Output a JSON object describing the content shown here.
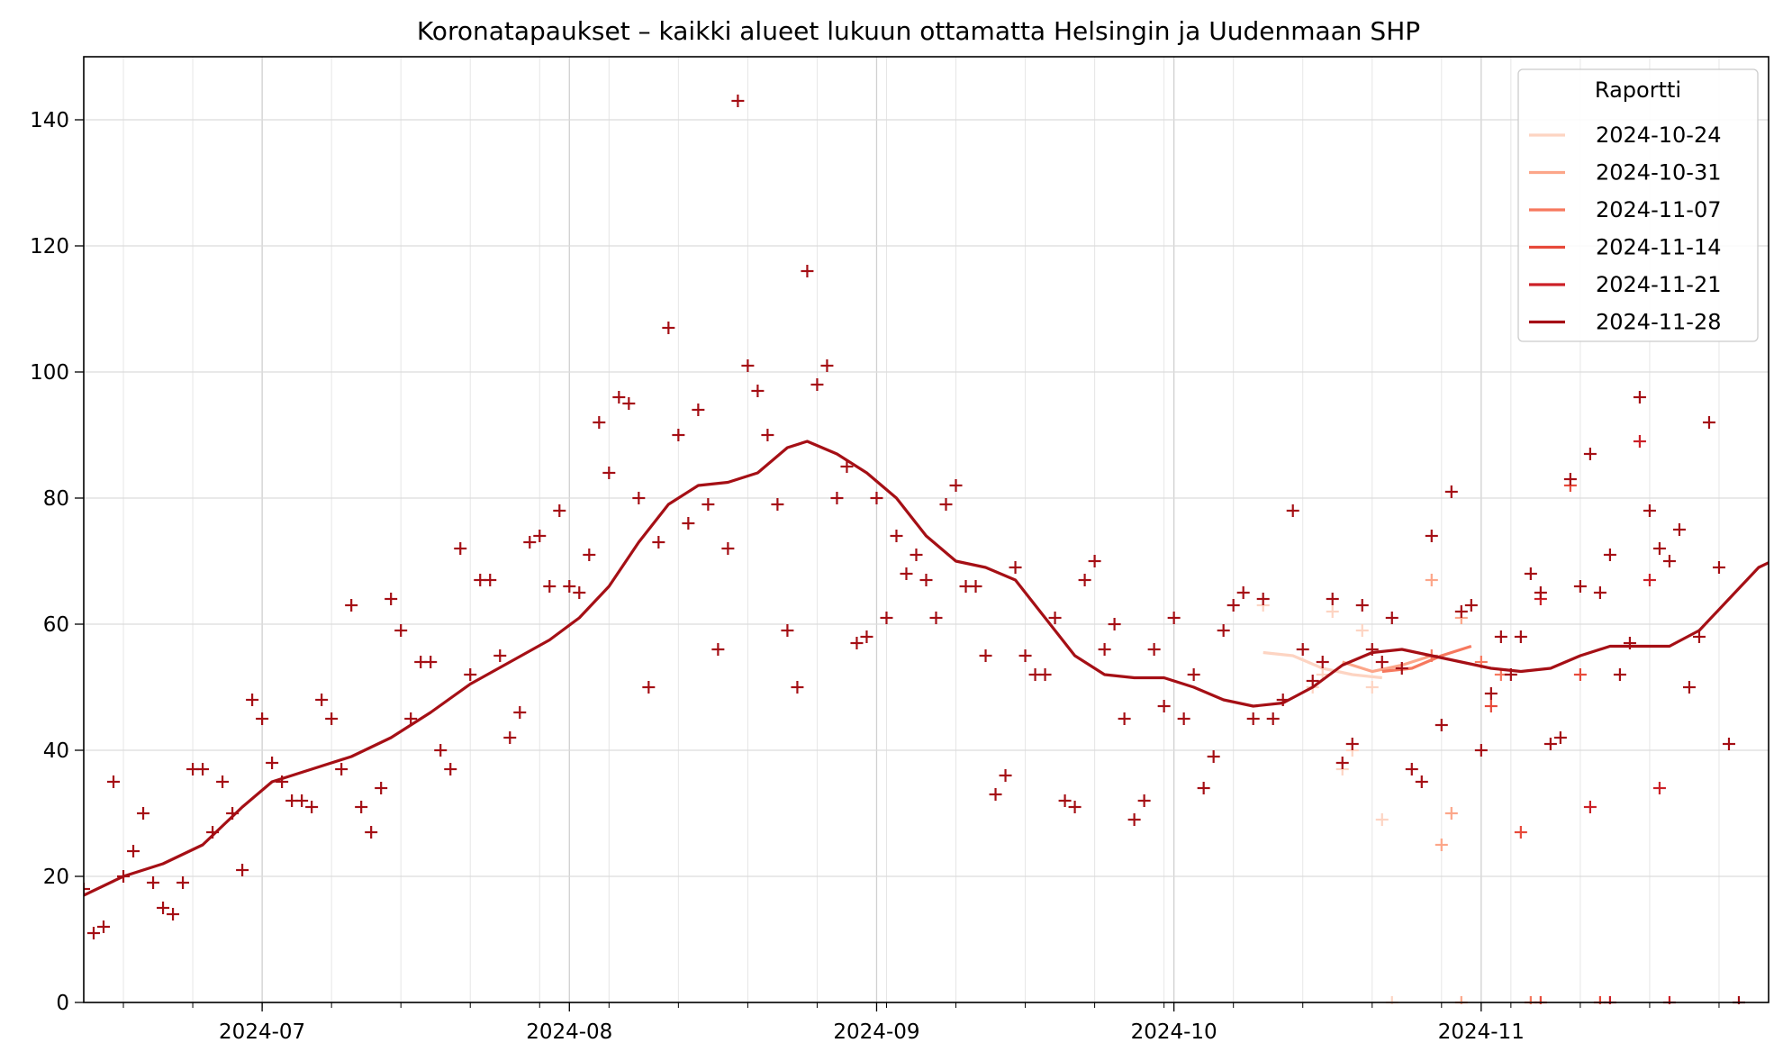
{
  "chart_data": {
    "type": "line",
    "title": "Koronatapaukset – kaikki alueet lukuun ottamatta Helsingin ja Uudenmaan SHP",
    "xlabel": "",
    "ylabel": "",
    "x_range": [
      "2024-06-13",
      "2024-11-30"
    ],
    "ylim": [
      0,
      150
    ],
    "x_ticks": [
      "2024-07",
      "2024-08",
      "2024-09",
      "2024-10",
      "2024-11"
    ],
    "y_ticks": [
      "0",
      "20",
      "40",
      "60",
      "80",
      "100",
      "120",
      "140"
    ],
    "grid": true,
    "legend": {
      "title": "Raportti",
      "placement": "top-right",
      "entries": [
        "2024-10-24",
        "2024-10-31",
        "2024-11-07",
        "2024-11-14",
        "2024-11-21",
        "2024-11-28"
      ]
    },
    "series_colors": [
      "#fdd4c2",
      "#fca689",
      "#f6785e",
      "#e74a3a",
      "#cc2027",
      "#a50f15"
    ],
    "series": [
      {
        "name": "2024-11-28",
        "trend": [
          [
            "2024-06-13",
            17
          ],
          [
            "2024-06-17",
            20
          ],
          [
            "2024-06-21",
            22
          ],
          [
            "2024-06-25",
            25
          ],
          [
            "2024-06-29",
            31
          ],
          [
            "2024-07-02",
            35
          ],
          [
            "2024-07-06",
            37
          ],
          [
            "2024-07-10",
            39
          ],
          [
            "2024-07-14",
            42
          ],
          [
            "2024-07-18",
            46
          ],
          [
            "2024-07-22",
            50.5
          ],
          [
            "2024-07-26",
            54
          ],
          [
            "2024-07-30",
            57.5
          ],
          [
            "2024-08-02",
            61
          ],
          [
            "2024-08-05",
            66
          ],
          [
            "2024-08-08",
            73
          ],
          [
            "2024-08-11",
            79
          ],
          [
            "2024-08-14",
            82
          ],
          [
            "2024-08-17",
            82.5
          ],
          [
            "2024-08-20",
            84
          ],
          [
            "2024-08-23",
            88
          ],
          [
            "2024-08-25",
            89
          ],
          [
            "2024-08-28",
            87
          ],
          [
            "2024-08-31",
            84
          ],
          [
            "2024-09-03",
            80
          ],
          [
            "2024-09-06",
            74
          ],
          [
            "2024-09-09",
            70
          ],
          [
            "2024-09-12",
            69
          ],
          [
            "2024-09-15",
            67
          ],
          [
            "2024-09-18",
            61
          ],
          [
            "2024-09-21",
            55
          ],
          [
            "2024-09-24",
            52
          ],
          [
            "2024-09-27",
            51.5
          ],
          [
            "2024-09-30",
            51.5
          ],
          [
            "2024-10-03",
            50
          ],
          [
            "2024-10-06",
            48
          ],
          [
            "2024-10-09",
            47
          ],
          [
            "2024-10-12",
            47.5
          ],
          [
            "2024-10-15",
            50
          ],
          [
            "2024-10-18",
            53.5
          ],
          [
            "2024-10-21",
            55.5
          ],
          [
            "2024-10-24",
            56
          ],
          [
            "2024-10-27",
            55
          ],
          [
            "2024-10-30",
            54
          ],
          [
            "2024-11-02",
            53
          ],
          [
            "2024-11-05",
            52.5
          ],
          [
            "2024-11-08",
            53
          ],
          [
            "2024-11-11",
            55
          ],
          [
            "2024-11-14",
            56.5
          ],
          [
            "2024-11-17",
            56.5
          ],
          [
            "2024-11-20",
            56.5
          ],
          [
            "2024-11-23",
            59
          ],
          [
            "2024-11-26",
            64
          ],
          [
            "2024-11-29",
            69
          ],
          [
            "2024-12-01",
            70.5
          ],
          [
            "2024-12-02",
            70.5
          ]
        ],
        "points": [
          [
            "2024-06-13",
            18
          ],
          [
            "2024-06-14",
            11
          ],
          [
            "2024-06-15",
            12
          ],
          [
            "2024-06-16",
            35
          ],
          [
            "2024-06-17",
            20
          ],
          [
            "2024-06-18",
            24
          ],
          [
            "2024-06-19",
            30
          ],
          [
            "2024-06-20",
            19
          ],
          [
            "2024-06-21",
            15
          ],
          [
            "2024-06-22",
            14
          ],
          [
            "2024-06-23",
            19
          ],
          [
            "2024-06-24",
            37
          ],
          [
            "2024-06-25",
            37
          ],
          [
            "2024-06-26",
            27
          ],
          [
            "2024-06-27",
            35
          ],
          [
            "2024-06-28",
            30
          ],
          [
            "2024-06-29",
            21
          ],
          [
            "2024-06-30",
            48
          ],
          [
            "2024-07-01",
            45
          ],
          [
            "2024-07-02",
            38
          ],
          [
            "2024-07-03",
            35
          ],
          [
            "2024-07-04",
            32
          ],
          [
            "2024-07-05",
            32
          ],
          [
            "2024-07-06",
            31
          ],
          [
            "2024-07-07",
            48
          ],
          [
            "2024-07-08",
            45
          ],
          [
            "2024-07-09",
            37
          ],
          [
            "2024-07-10",
            63
          ],
          [
            "2024-07-11",
            31
          ],
          [
            "2024-07-12",
            27
          ],
          [
            "2024-07-13",
            34
          ],
          [
            "2024-07-14",
            64
          ],
          [
            "2024-07-15",
            59
          ],
          [
            "2024-07-16",
            45
          ],
          [
            "2024-07-17",
            54
          ],
          [
            "2024-07-18",
            54
          ],
          [
            "2024-07-19",
            40
          ],
          [
            "2024-07-20",
            37
          ],
          [
            "2024-07-21",
            72
          ],
          [
            "2024-07-22",
            52
          ],
          [
            "2024-07-23",
            67
          ],
          [
            "2024-07-24",
            67
          ],
          [
            "2024-07-25",
            55
          ],
          [
            "2024-07-26",
            42
          ],
          [
            "2024-07-27",
            46
          ],
          [
            "2024-07-28",
            73
          ],
          [
            "2024-07-29",
            74
          ],
          [
            "2024-07-30",
            66
          ],
          [
            "2024-07-31",
            78
          ],
          [
            "2024-08-01",
            66
          ],
          [
            "2024-08-02",
            65
          ],
          [
            "2024-08-03",
            71
          ],
          [
            "2024-08-04",
            92
          ],
          [
            "2024-08-05",
            84
          ],
          [
            "2024-08-06",
            96
          ],
          [
            "2024-08-07",
            95
          ],
          [
            "2024-08-08",
            80
          ],
          [
            "2024-08-09",
            50
          ],
          [
            "2024-08-10",
            73
          ],
          [
            "2024-08-11",
            107
          ],
          [
            "2024-08-12",
            90
          ],
          [
            "2024-08-13",
            76
          ],
          [
            "2024-08-14",
            94
          ],
          [
            "2024-08-15",
            79
          ],
          [
            "2024-08-16",
            56
          ],
          [
            "2024-08-17",
            72
          ],
          [
            "2024-08-18",
            143
          ],
          [
            "2024-08-19",
            101
          ],
          [
            "2024-08-20",
            97
          ],
          [
            "2024-08-21",
            90
          ],
          [
            "2024-08-22",
            79
          ],
          [
            "2024-08-23",
            59
          ],
          [
            "2024-08-24",
            50
          ],
          [
            "2024-08-25",
            116
          ],
          [
            "2024-08-26",
            98
          ],
          [
            "2024-08-27",
            101
          ],
          [
            "2024-08-28",
            80
          ],
          [
            "2024-08-29",
            85
          ],
          [
            "2024-08-30",
            57
          ],
          [
            "2024-08-31",
            58
          ],
          [
            "2024-09-01",
            80
          ],
          [
            "2024-09-02",
            61
          ],
          [
            "2024-09-03",
            74
          ],
          [
            "2024-09-04",
            68
          ],
          [
            "2024-09-05",
            71
          ],
          [
            "2024-09-06",
            67
          ],
          [
            "2024-09-07",
            61
          ],
          [
            "2024-09-08",
            79
          ],
          [
            "2024-09-09",
            82
          ],
          [
            "2024-09-10",
            66
          ],
          [
            "2024-09-11",
            66
          ],
          [
            "2024-09-12",
            55
          ],
          [
            "2024-09-13",
            33
          ],
          [
            "2024-09-14",
            36
          ],
          [
            "2024-09-15",
            69
          ],
          [
            "2024-09-16",
            55
          ],
          [
            "2024-09-17",
            52
          ],
          [
            "2024-09-18",
            52
          ],
          [
            "2024-09-19",
            61
          ],
          [
            "2024-09-20",
            32
          ],
          [
            "2024-09-21",
            31
          ],
          [
            "2024-09-22",
            67
          ],
          [
            "2024-09-23",
            70
          ],
          [
            "2024-09-24",
            56
          ],
          [
            "2024-09-25",
            60
          ],
          [
            "2024-09-26",
            45
          ],
          [
            "2024-09-27",
            29
          ],
          [
            "2024-09-28",
            32
          ],
          [
            "2024-09-29",
            56
          ],
          [
            "2024-09-30",
            47
          ],
          [
            "2024-10-01",
            61
          ],
          [
            "2024-10-02",
            45
          ],
          [
            "2024-10-03",
            52
          ],
          [
            "2024-10-04",
            34
          ],
          [
            "2024-10-05",
            39
          ],
          [
            "2024-10-06",
            59
          ],
          [
            "2024-10-07",
            63
          ],
          [
            "2024-10-08",
            65
          ],
          [
            "2024-10-09",
            45
          ],
          [
            "2024-10-10",
            64
          ],
          [
            "2024-10-11",
            45
          ],
          [
            "2024-10-12",
            48
          ],
          [
            "2024-10-13",
            78
          ],
          [
            "2024-10-14",
            56
          ],
          [
            "2024-10-15",
            51
          ],
          [
            "2024-10-16",
            54
          ],
          [
            "2024-10-17",
            64
          ],
          [
            "2024-10-18",
            38
          ],
          [
            "2024-10-19",
            41
          ],
          [
            "2024-10-20",
            63
          ],
          [
            "2024-10-21",
            56
          ],
          [
            "2024-10-22",
            54
          ],
          [
            "2024-10-23",
            61
          ],
          [
            "2024-10-24",
            53
          ],
          [
            "2024-10-25",
            37
          ],
          [
            "2024-10-26",
            35
          ],
          [
            "2024-10-27",
            74
          ],
          [
            "2024-10-28",
            44
          ],
          [
            "2024-10-29",
            81
          ],
          [
            "2024-10-30",
            62
          ],
          [
            "2024-10-31",
            63
          ],
          [
            "2024-11-01",
            40
          ],
          [
            "2024-11-02",
            49
          ],
          [
            "2024-11-03",
            58
          ],
          [
            "2024-11-04",
            52
          ],
          [
            "2024-11-05",
            58
          ],
          [
            "2024-11-06",
            68
          ],
          [
            "2024-11-07",
            65
          ],
          [
            "2024-11-08",
            41
          ],
          [
            "2024-11-09",
            42
          ],
          [
            "2024-11-10",
            83
          ],
          [
            "2024-11-11",
            66
          ],
          [
            "2024-11-12",
            87
          ],
          [
            "2024-11-13",
            65
          ],
          [
            "2024-11-14",
            71
          ],
          [
            "2024-11-15",
            52
          ],
          [
            "2024-11-16",
            57
          ],
          [
            "2024-11-17",
            96
          ],
          [
            "2024-11-18",
            78
          ],
          [
            "2024-11-19",
            72
          ],
          [
            "2024-11-20",
            70
          ],
          [
            "2024-11-21",
            75
          ],
          [
            "2024-11-22",
            50
          ],
          [
            "2024-11-23",
            58
          ],
          [
            "2024-11-24",
            92
          ],
          [
            "2024-11-25",
            69
          ],
          [
            "2024-11-26",
            41
          ],
          [
            "2024-11-27",
            0
          ]
        ]
      },
      {
        "name": "2024-11-21",
        "points": [
          [
            "2024-11-07",
            64
          ],
          [
            "2024-11-12",
            31
          ],
          [
            "2024-11-14",
            0
          ],
          [
            "2024-11-17",
            89
          ],
          [
            "2024-11-18",
            67
          ],
          [
            "2024-11-19",
            34
          ],
          [
            "2024-11-20",
            0
          ]
        ]
      },
      {
        "name": "2024-11-14",
        "points": [
          [
            "2024-11-02",
            47
          ],
          [
            "2024-11-05",
            27
          ],
          [
            "2024-11-07",
            0
          ],
          [
            "2024-11-10",
            82
          ],
          [
            "2024-11-11",
            52
          ],
          [
            "2024-11-13",
            0
          ]
        ]
      },
      {
        "name": "2024-11-07",
        "trend": [
          [
            "2024-10-22",
            52.5
          ],
          [
            "2024-10-25",
            53
          ],
          [
            "2024-10-28",
            55
          ],
          [
            "2024-10-31",
            56.5
          ]
        ],
        "points": [
          [
            "2024-10-27",
            55
          ],
          [
            "2024-11-01",
            54
          ],
          [
            "2024-11-03",
            52
          ],
          [
            "2024-11-06",
            0
          ]
        ]
      },
      {
        "name": "2024-10-31",
        "trend": [
          [
            "2024-10-18",
            54
          ],
          [
            "2024-10-21",
            52.5
          ],
          [
            "2024-10-24",
            53.5
          ],
          [
            "2024-10-27",
            55
          ]
        ],
        "points": [
          [
            "2024-10-27",
            67
          ],
          [
            "2024-10-28",
            25
          ],
          [
            "2024-10-29",
            30
          ],
          [
            "2024-10-30",
            61
          ],
          [
            "2024-10-30",
            0
          ]
        ]
      },
      {
        "name": "2024-10-24",
        "trend": [
          [
            "2024-10-10",
            55.5
          ],
          [
            "2024-10-13",
            55
          ],
          [
            "2024-10-16",
            53
          ],
          [
            "2024-10-19",
            52
          ],
          [
            "2024-10-22",
            51.5
          ]
        ],
        "points": [
          [
            "2024-10-10",
            63
          ],
          [
            "2024-10-15",
            50
          ],
          [
            "2024-10-16",
            52
          ],
          [
            "2024-10-17",
            62
          ],
          [
            "2024-10-18",
            37
          ],
          [
            "2024-10-19",
            40
          ],
          [
            "2024-10-20",
            59
          ],
          [
            "2024-10-21",
            50
          ],
          [
            "2024-10-22",
            29
          ],
          [
            "2024-10-23",
            0
          ]
        ]
      }
    ]
  }
}
